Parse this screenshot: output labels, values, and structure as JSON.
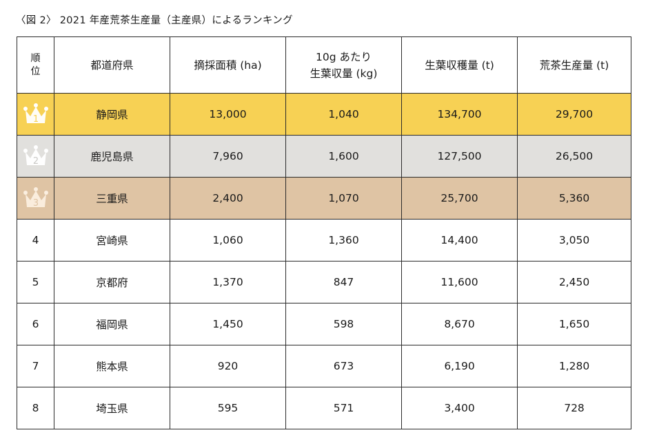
{
  "caption": "〈図 2〉 2021 年産荒茶生産量（主産県）によるランキング",
  "headers": {
    "rank": [
      "順",
      "位"
    ],
    "prefecture": "都道府県",
    "area": "摘採面積 (ha)",
    "yield": [
      "10g あたり",
      "生葉収量 (kg)"
    ],
    "harvest": "生葉収穫量 (t)",
    "production": "荒茶生産量 (t)"
  },
  "colors": {
    "gold": "#f7d154",
    "silver": "#e1e0dd",
    "bronze": "#dfc4a4"
  },
  "rows": [
    {
      "rank": "1",
      "crown": "gold-crown-icon",
      "prefecture": "静岡県",
      "area": "13,000",
      "yield": "1,040",
      "harvest": "134,700",
      "production": "29,700"
    },
    {
      "rank": "2",
      "crown": "silver-crown-icon",
      "prefecture": "鹿児島県",
      "area": "7,960",
      "yield": "1,600",
      "harvest": "127,500",
      "production": "26,500"
    },
    {
      "rank": "3",
      "crown": "bronze-crown-icon",
      "prefecture": "三重県",
      "area": "2,400",
      "yield": "1,070",
      "harvest": "25,700",
      "production": "5,360"
    },
    {
      "rank": "4",
      "prefecture": "宮崎県",
      "area": "1,060",
      "yield": "1,360",
      "harvest": "14,400",
      "production": "3,050"
    },
    {
      "rank": "5",
      "prefecture": "京都府",
      "area": "1,370",
      "yield": "847",
      "harvest": "11,600",
      "production": "2,450"
    },
    {
      "rank": "6",
      "prefecture": "福岡県",
      "area": "1,450",
      "yield": "598",
      "harvest": "8,670",
      "production": "1,650"
    },
    {
      "rank": "7",
      "prefecture": "熊本県",
      "area": "920",
      "yield": "673",
      "harvest": "6,190",
      "production": "1,280"
    },
    {
      "rank": "8",
      "prefecture": "埼玉県",
      "area": "595",
      "yield": "571",
      "harvest": "3,400",
      "production": "728"
    }
  ]
}
